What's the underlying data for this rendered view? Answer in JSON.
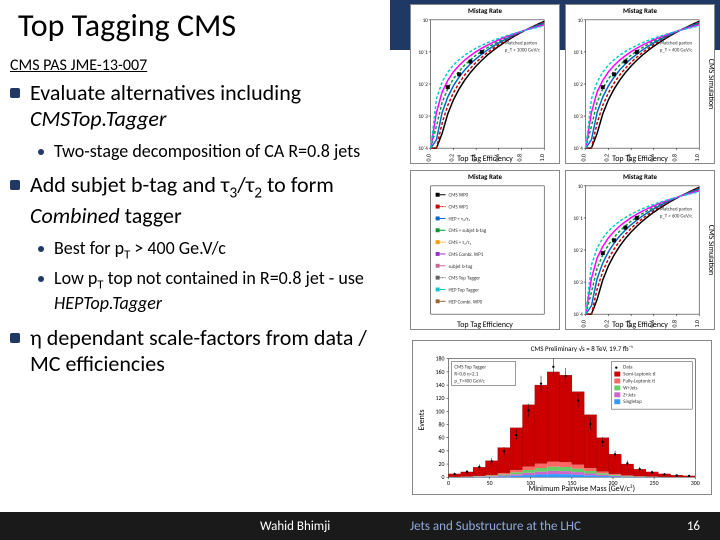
{
  "title": "Top Tagging CMS",
  "subtitle": "CMS PAS JME-13-007",
  "bullets": {
    "b1": "Evaluate alternatives including ",
    "b1_italic": "CMSTop.Tagger",
    "b1_sub1": "Two-stage decomposition of CA R=0.8 jets",
    "b2_a": "Add subjet b-tag and τ",
    "b2_b": "/τ",
    "b2_c": " to form ",
    "b2_italic": "Combined",
    "b2_d": " tagger",
    "b2_sub1_a": "Best for p",
    "b2_sub1_b": " > 400 Ge.V/c",
    "b2_sub2_a": "Low p",
    "b2_sub2_b": " top not contained in R=0.8 jet - use ",
    "b2_sub2_italic": "HEPTop.Tagger",
    "b3": "η dependant scale-factors from data / MC efficiencies"
  },
  "plots": {
    "mistag_label": "Mistag Rate",
    "efficiency_label": "Top Tag Efficiency",
    "cms_sim": "CMS Simulation",
    "sqrt_s": "√s = 8 TeV",
    "tl_condition": "Matched parton\np_T > 1000 GeV/c",
    "tr_condition": "Matched parton\np_T > 400 GeV/c",
    "mr_condition": "Matched parton\np_T > 600 GeV/c",
    "legend_items": [
      "CMS WP0",
      "CMS WP1",
      "HEP +  τ₃/τ₂",
      "CMS + subjet b-tag",
      "CMS + τ₃/τ₂",
      "CMS Combi. WP1",
      "subjet b-tag",
      "CMS Top Tagger",
      "HEP Top Tagger",
      "HEP Combi. WP0"
    ],
    "legend_colors": [
      "#000000",
      "#cc0000",
      "#0066cc",
      "#009933",
      "#ff9900",
      "#9933cc",
      "#cc6699",
      "#666666",
      "#00cccc",
      "#996633"
    ],
    "roc_colors": [
      "#000000",
      "#cc0000",
      "#0066cc",
      "#009933",
      "#ff00ff",
      "#00cccc"
    ],
    "hist_title": "CMS Preliminary  √s = 8 TeV, 19.7 fb⁻¹",
    "hist_ylabel": "Events",
    "hist_xlabel": "Minimum Pairwise Mass (GeV/c²)",
    "hist_legend": [
      "Data",
      "Semi-Leptonic tt̄",
      "Fully-Leptonic tt̄",
      "W+Jets",
      "Z+Jets",
      "Singletop"
    ],
    "hist_legend_colors": [
      "#000000",
      "#cc0000",
      "#ff6666",
      "#66cc66",
      "#cc66cc",
      "#3399ff"
    ],
    "hist_cuts": [
      "CMS Top Tagger",
      "R=0.8 η<2.1",
      "p_T>400 GeV/c"
    ],
    "hist_bins": [
      5,
      8,
      15,
      25,
      45,
      75,
      110,
      140,
      160,
      155,
      130,
      95,
      60,
      35,
      20,
      12,
      8,
      5,
      3,
      2
    ],
    "hist_ymax": 180,
    "hist_xmax": 300,
    "bg": "#ffffff",
    "grid": "#cccccc"
  },
  "footer": {
    "author": "Wahid Bhimji",
    "talk": "Jets and Substructure at the LHC",
    "page": "16"
  }
}
